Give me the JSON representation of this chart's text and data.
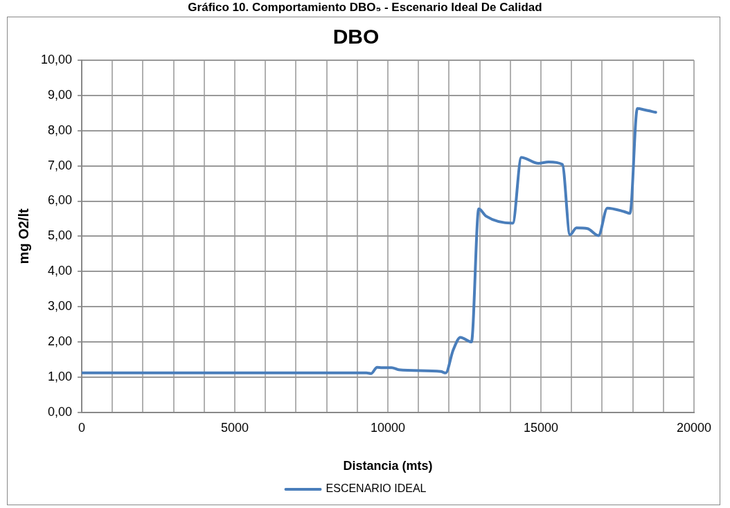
{
  "chart_data": {
    "type": "line",
    "title": "Gráfico 10. Comportamiento DBO₅ - Escenario Ideal De Calidad",
    "subtitle": "DBO",
    "xlabel": "Distancia (mts)",
    "ylabel": "mg O2/lt",
    "series": [
      {
        "name": "ESCENARIO IDEAL",
        "color": "#4a7ebb",
        "x": [
          0,
          9300,
          9450,
          9650,
          9808,
          10120,
          10360,
          11730,
          11890,
          12130,
          12370,
          12730,
          12970,
          13210,
          14080,
          14360,
          14920,
          15250,
          15700,
          15950,
          16160,
          16520,
          16880,
          17170,
          17720,
          17910,
          18150,
          18390,
          18750
        ],
        "values": [
          1.12,
          1.12,
          1.1,
          1.28,
          1.27,
          1.27,
          1.21,
          1.16,
          1.12,
          1.76,
          2.13,
          2.0,
          5.78,
          5.57,
          5.37,
          7.24,
          7.07,
          7.11,
          7.04,
          5.04,
          5.24,
          5.22,
          5.02,
          5.8,
          5.7,
          5.65,
          8.63,
          8.59,
          8.52
        ]
      }
    ],
    "xlim": [
      0,
      20000
    ],
    "xticks": [
      0,
      {
        "value": 1000,
        "label": null
      },
      {
        "value": 2000,
        "label": null
      },
      {
        "value": 3000,
        "label": null
      },
      {
        "value": 4000,
        "label": null
      },
      5000,
      {
        "value": 6000,
        "label": null
      },
      {
        "value": 7000,
        "label": null
      },
      {
        "value": 8000,
        "label": null
      },
      {
        "value": 9000,
        "label": null
      },
      10000,
      {
        "value": 11000,
        "label": null
      },
      {
        "value": 12000,
        "label": null
      },
      {
        "value": 13000,
        "label": null
      },
      {
        "value": 14000,
        "label": null
      },
      15000,
      {
        "value": 16000,
        "label": null
      },
      {
        "value": 17000,
        "label": null
      },
      {
        "value": 18000,
        "label": null
      },
      {
        "value": 19000,
        "label": null
      },
      20000
    ],
    "ylim": [
      0,
      10
    ],
    "yticks": [
      {
        "value": 0,
        "label": "0,00"
      },
      {
        "value": 1,
        "label": "1,00"
      },
      {
        "value": 2,
        "label": "2,00"
      },
      {
        "value": 3,
        "label": "3,00"
      },
      {
        "value": 4,
        "label": "4,00"
      },
      {
        "value": 5,
        "label": "5,00"
      },
      {
        "value": 6,
        "label": "6,00"
      },
      {
        "value": 7,
        "label": "7,00"
      },
      {
        "value": 8,
        "label": "8,00"
      },
      {
        "value": 9,
        "label": "9,00"
      },
      {
        "value": 10,
        "label": "10,00"
      }
    ],
    "grid": true,
    "legend": "bottom",
    "marker": "none",
    "line_style": "solid"
  }
}
